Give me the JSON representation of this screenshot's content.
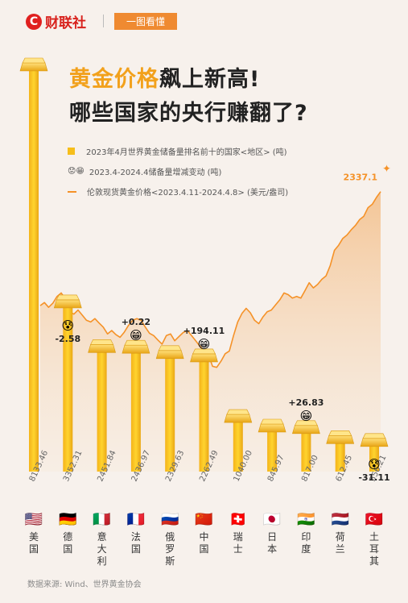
{
  "header": {
    "logo_letter": "C",
    "logo_text": "财联社",
    "tag": "一图看懂"
  },
  "title": {
    "line1_highlight": "黄金价格",
    "line1_rest": "飙上新高!",
    "line2": "哪些国家的央行赚翻了?"
  },
  "legend": {
    "reserves": "2023年4月世界黄金储备量排名前十的国家<地区> (吨)",
    "change": "2023.4-2024.4储备量增减变动 (吨)",
    "price": "伦敦现货黄金价格<2023.4.11-2024.4.8> (美元/盎司)",
    "change_icons": "😟😁"
  },
  "source": "数据来源: Wind、世界黄金协会",
  "colors": {
    "bar": "#f6be1b",
    "line": "#f59228",
    "area": "#f6cf9f",
    "brand": "#d8211c",
    "tag": "#ef8a31"
  },
  "chart_data": {
    "type": "bar",
    "categories": [
      "美国",
      "德国",
      "意大利",
      "法国",
      "俄罗斯",
      "中国",
      "瑞士",
      "日本",
      "印度",
      "荷兰",
      "土耳其"
    ],
    "flags": [
      "🇺🇸",
      "🇩🇪",
      "🇮🇹",
      "🇫🇷",
      "🇷🇺",
      "🇨🇳",
      "🇨🇭",
      "🇯🇵",
      "🇮🇳",
      "🇳🇱",
      "🇹🇷"
    ],
    "series": [
      {
        "name": "2023年4月世界黄金储备量排名前十的国家<地区> (吨)",
        "values": [
          8133.46,
          3352.31,
          2451.84,
          2436.97,
          2329.63,
          2262.49,
          1040.0,
          845.97,
          817.0,
          612.45,
          556.21
        ],
        "value_labels": [
          "8133.46",
          "3352.31",
          "2451.84",
          "2436.97",
          "2329.63",
          "2262.49",
          "1040.00",
          "845.97",
          "817.00",
          "612.45",
          "556.21"
        ]
      }
    ],
    "changes": [
      {
        "category": "德国",
        "value": -2.58,
        "label": "-2.58"
      },
      {
        "category": "法国",
        "value": 0.22,
        "label": "+0.22"
      },
      {
        "category": "中国",
        "value": 194.11,
        "label": "+194.11"
      },
      {
        "category": "印度",
        "value": 26.83,
        "label": "+26.83"
      },
      {
        "category": "土耳其",
        "value": -31.11,
        "label": "-31.11"
      }
    ],
    "price_line": {
      "name": "伦敦现货黄金价格<2023.4.11-2024.4.8> (美元/盎司)",
      "end_label": "2337.1",
      "values": [
        2003,
        2012,
        1998,
        2010,
        2030,
        2040,
        2022,
        1985,
        1978,
        1990,
        1975,
        1960,
        1955,
        1965,
        1952,
        1940,
        1920,
        1930,
        1918,
        1910,
        1925,
        1945,
        1960,
        1965,
        1960,
        1940,
        1922,
        1915,
        1902,
        1890,
        1915,
        1920,
        1900,
        1912,
        1924,
        1930,
        1915,
        1900,
        1884,
        1870,
        1860,
        1825,
        1822,
        1840,
        1862,
        1870,
        1915,
        1955,
        1980,
        1995,
        1982,
        1960,
        1950,
        1970,
        1985,
        1990,
        2005,
        2020,
        2040,
        2035,
        2025,
        2030,
        2025,
        2047,
        2070,
        2055,
        2065,
        2080,
        2090,
        2120,
        2165,
        2180,
        2200,
        2210,
        2225,
        2238,
        2255,
        2265,
        2290,
        2300,
        2320,
        2337.1
      ],
      "ylim": [
        1800,
        2360
      ]
    }
  }
}
